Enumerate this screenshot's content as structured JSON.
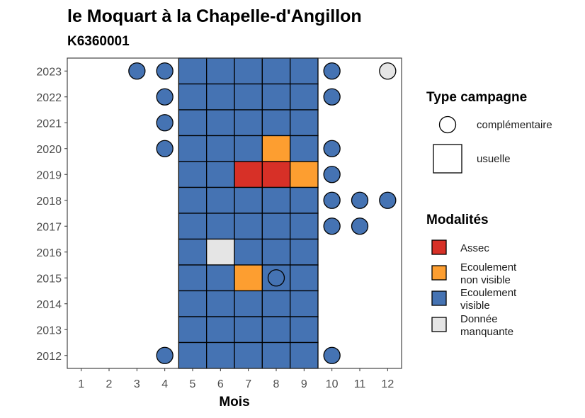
{
  "chart_data": {
    "type": "heatmap",
    "title": "le Moquart à la Chapelle-d'Angillon",
    "subtitle": "K6360001",
    "xlabel": "Mois",
    "ylabel": "",
    "x_ticks": [
      "1",
      "2",
      "3",
      "4",
      "5",
      "6",
      "7",
      "8",
      "9",
      "10",
      "11",
      "12"
    ],
    "y_ticks": [
      "2012",
      "2013",
      "2014",
      "2015",
      "2016",
      "2017",
      "2018",
      "2019",
      "2020",
      "2021",
      "2022",
      "2023"
    ],
    "xlim": [
      0.5,
      12.5
    ],
    "ylim": [
      2011.5,
      2023.5
    ],
    "colors": {
      "assec": "#d73027",
      "non_visible": "#fd9e30",
      "visible": "#4573b3",
      "manquante": "#e5e5e5"
    },
    "legend_type": {
      "title": "Type campagne",
      "items": [
        {
          "label": "complémentaire",
          "shape": "circle"
        },
        {
          "label": "usuelle",
          "shape": "square"
        }
      ]
    },
    "legend_modalites": {
      "title": "Modalités",
      "items": [
        {
          "key": "assec",
          "lines": [
            "Assec"
          ]
        },
        {
          "key": "non_visible",
          "lines": [
            "Ecoulement",
            "non visible"
          ]
        },
        {
          "key": "visible",
          "lines": [
            "Ecoulement",
            "visible"
          ]
        },
        {
          "key": "manquante",
          "lines": [
            "Donnée",
            "manquante"
          ]
        }
      ]
    },
    "usuelle": [
      {
        "year": 2023,
        "months": [
          "visible",
          "visible",
          "visible",
          "visible",
          "visible"
        ]
      },
      {
        "year": 2022,
        "months": [
          "visible",
          "visible",
          "visible",
          "visible",
          "visible"
        ]
      },
      {
        "year": 2021,
        "months": [
          "visible",
          "visible",
          "visible",
          "visible",
          "visible"
        ]
      },
      {
        "year": 2020,
        "months": [
          "visible",
          "visible",
          "visible",
          "non_visible",
          "visible"
        ]
      },
      {
        "year": 2019,
        "months": [
          "visible",
          "visible",
          "assec",
          "assec",
          "non_visible"
        ]
      },
      {
        "year": 2018,
        "months": [
          "visible",
          "visible",
          "visible",
          "visible",
          "visible"
        ]
      },
      {
        "year": 2017,
        "months": [
          "visible",
          "visible",
          "visible",
          "visible",
          "visible"
        ]
      },
      {
        "year": 2016,
        "months": [
          "visible",
          "manquante",
          "visible",
          "visible",
          "visible"
        ]
      },
      {
        "year": 2015,
        "months": [
          "visible",
          "visible",
          "non_visible",
          "visible",
          "visible"
        ]
      },
      {
        "year": 2014,
        "months": [
          "visible",
          "visible",
          "visible",
          "visible",
          "visible"
        ]
      },
      {
        "year": 2013,
        "months": [
          "visible",
          "visible",
          "visible",
          "visible",
          "visible"
        ]
      },
      {
        "year": 2012,
        "months": [
          "visible",
          "visible",
          "visible",
          "visible",
          "visible"
        ]
      }
    ],
    "usuelle_months": [
      5,
      6,
      7,
      8,
      9
    ],
    "complementaire": [
      {
        "year": 2023,
        "month": 3,
        "value": "visible"
      },
      {
        "year": 2023,
        "month": 4,
        "value": "visible"
      },
      {
        "year": 2023,
        "month": 10,
        "value": "visible"
      },
      {
        "year": 2023,
        "month": 12,
        "value": "manquante"
      },
      {
        "year": 2022,
        "month": 4,
        "value": "visible"
      },
      {
        "year": 2022,
        "month": 10,
        "value": "visible"
      },
      {
        "year": 2021,
        "month": 4,
        "value": "visible"
      },
      {
        "year": 2020,
        "month": 4,
        "value": "visible"
      },
      {
        "year": 2020,
        "month": 10,
        "value": "visible"
      },
      {
        "year": 2019,
        "month": 10,
        "value": "visible"
      },
      {
        "year": 2018,
        "month": 10,
        "value": "visible"
      },
      {
        "year": 2018,
        "month": 11,
        "value": "visible"
      },
      {
        "year": 2018,
        "month": 12,
        "value": "visible"
      },
      {
        "year": 2017,
        "month": 10,
        "value": "visible"
      },
      {
        "year": 2017,
        "month": 11,
        "value": "visible"
      },
      {
        "year": 2015,
        "month": 8,
        "value": "visible"
      },
      {
        "year": 2012,
        "month": 4,
        "value": "visible"
      },
      {
        "year": 2012,
        "month": 10,
        "value": "visible"
      }
    ]
  }
}
